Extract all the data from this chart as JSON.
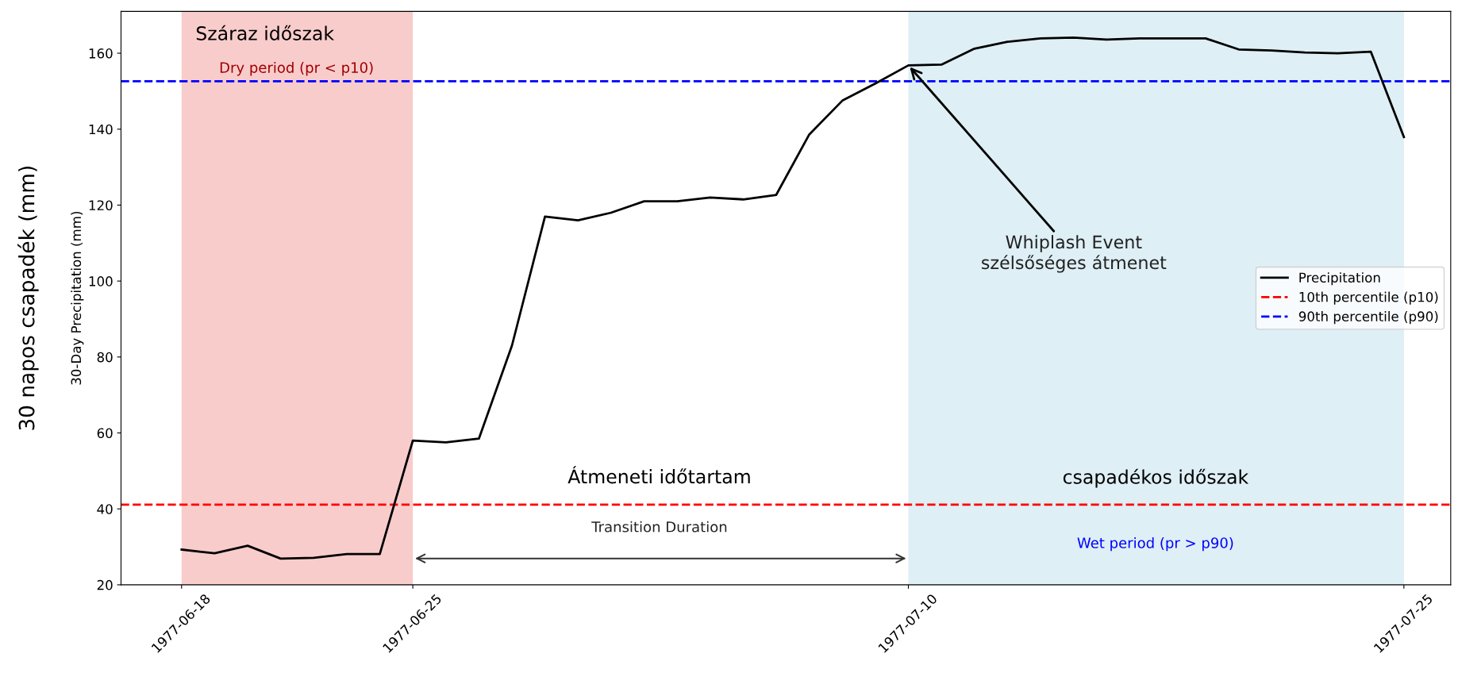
{
  "chart_data": {
    "type": "line",
    "ylabel": "30-Day Precipitation (mm)",
    "x": [
      "1977-06-18",
      "1977-06-19",
      "1977-06-20",
      "1977-06-21",
      "1977-06-22",
      "1977-06-23",
      "1977-06-24",
      "1977-06-25",
      "1977-06-26",
      "1977-06-27",
      "1977-06-28",
      "1977-06-29",
      "1977-06-30",
      "1977-07-01",
      "1977-07-02",
      "1977-07-03",
      "1977-07-04",
      "1977-07-05",
      "1977-07-06",
      "1977-07-07",
      "1977-07-08",
      "1977-07-09",
      "1977-07-10",
      "1977-07-11",
      "1977-07-12",
      "1977-07-13",
      "1977-07-14",
      "1977-07-15",
      "1977-07-16",
      "1977-07-17",
      "1977-07-18",
      "1977-07-19",
      "1977-07-20",
      "1977-07-21",
      "1977-07-22",
      "1977-07-23",
      "1977-07-24",
      "1977-07-25"
    ],
    "series": [
      {
        "name": "Precipitation",
        "color": "#000000",
        "values": [
          29.3,
          28.3,
          30.3,
          26.9,
          27.1,
          28.1,
          28.1,
          58,
          57.5,
          58.5,
          83,
          117,
          116,
          118,
          121,
          121,
          122,
          121.5,
          122.7,
          138.6,
          147.5,
          152,
          156.8,
          157,
          161.2,
          163,
          163.9,
          164.1,
          163.6,
          163.9,
          163.9,
          163.9,
          161,
          160.7,
          160.2,
          160,
          160.4,
          137.9
        ]
      }
    ],
    "ref_lines": [
      {
        "axis": "y",
        "value": 41.1,
        "label": "10th percentile (p10)",
        "color": "#ff0000",
        "line_style": "dashed"
      },
      {
        "axis": "y",
        "value": 152.6,
        "label": "90th percentile (p90)",
        "color": "#0000ff",
        "line_style": "dashed"
      }
    ],
    "bands": [
      {
        "axis": "x",
        "from": "1977-06-18",
        "to": "1977-06-25",
        "color": "#f08080"
      },
      {
        "axis": "x",
        "from": "1977-07-10",
        "to": "1977-07-25",
        "color": "#add8e6"
      }
    ],
    "annotations": [
      "30 napos csapadék (mm)",
      "Száraz időszak",
      "Dry period (pr < p10)",
      "Átmeneti időtartam",
      "Transition Duration",
      "csapadékos időszak",
      "Wet period (pr > p90)",
      {
        "text": "Whiplash Event\nszélsőséges átmenet",
        "x": "1977-07-10",
        "y": 156.8
      }
    ],
    "xlim": [
      "1977-06-16T04:00",
      "1977-07-26T10:00"
    ],
    "xticks": [
      "1977-06-18",
      "1977-06-25",
      "1977-07-10",
      "1977-07-25"
    ],
    "ylim": [
      20,
      171
    ],
    "yticks": [
      20,
      40,
      60,
      80,
      100,
      120,
      140,
      160
    ],
    "grid": false,
    "legend": "center right"
  }
}
